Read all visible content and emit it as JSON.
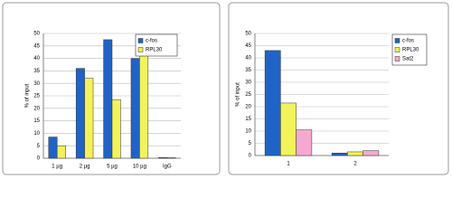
{
  "chart_data": [
    {
      "type": "bar",
      "ylabel": "% of input",
      "categories": [
        "1 µg",
        "2 µg",
        "5 µg",
        "10 µg",
        "IgG"
      ],
      "series": [
        {
          "name": "c-fos",
          "color": "#1f63c6",
          "values": [
            8.5,
            36,
            47.5,
            40,
            0.3
          ]
        },
        {
          "name": "RPL30",
          "color": "#f2f25a",
          "values": [
            5,
            32,
            23.5,
            46.5,
            0.2
          ]
        }
      ],
      "ylim": [
        0,
        50
      ],
      "yticks": [
        0,
        5,
        10,
        15,
        20,
        25,
        30,
        35,
        40,
        45,
        50
      ],
      "grid": true,
      "legend": "upper right"
    },
    {
      "type": "bar",
      "ylabel": "% of input",
      "categories": [
        "1",
        "2"
      ],
      "series": [
        {
          "name": "c-fos",
          "color": "#1f63c6",
          "values": [
            43,
            1
          ]
        },
        {
          "name": "RPL30",
          "color": "#f2f25a",
          "values": [
            21.5,
            1.5
          ]
        },
        {
          "name": "Sat2",
          "color": "#f7a8d0",
          "values": [
            10.5,
            2
          ]
        }
      ],
      "ylim": [
        0,
        50
      ],
      "yticks": [
        0,
        5,
        10,
        15,
        20,
        25,
        30,
        35,
        40,
        45,
        50
      ],
      "grid": true,
      "legend": "right"
    }
  ]
}
